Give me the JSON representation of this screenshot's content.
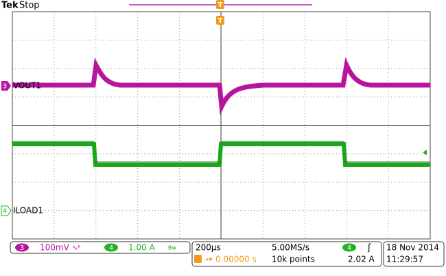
{
  "header": {
    "brand": "Tek",
    "state": "Stop",
    "trigger_marker": "T",
    "trigger_level_marker": "T"
  },
  "channels": [
    {
      "number": "3",
      "label": "VOUT1"
    },
    {
      "number": "4",
      "label": "ILOAD1"
    }
  ],
  "status": {
    "ch3_number": "3",
    "ch3_scale": "100mV",
    "ch4_number": "4",
    "ch4_scale": "1.00 A",
    "timebase": "200µs",
    "sample_rate": "5.00MS/s",
    "trigger_position": "0.00000 s",
    "record_length": "10k points",
    "trigger_channel": "4",
    "trigger_level": "2.02 A",
    "date": "18 Nov 2014",
    "time": "11:29:57"
  }
}
